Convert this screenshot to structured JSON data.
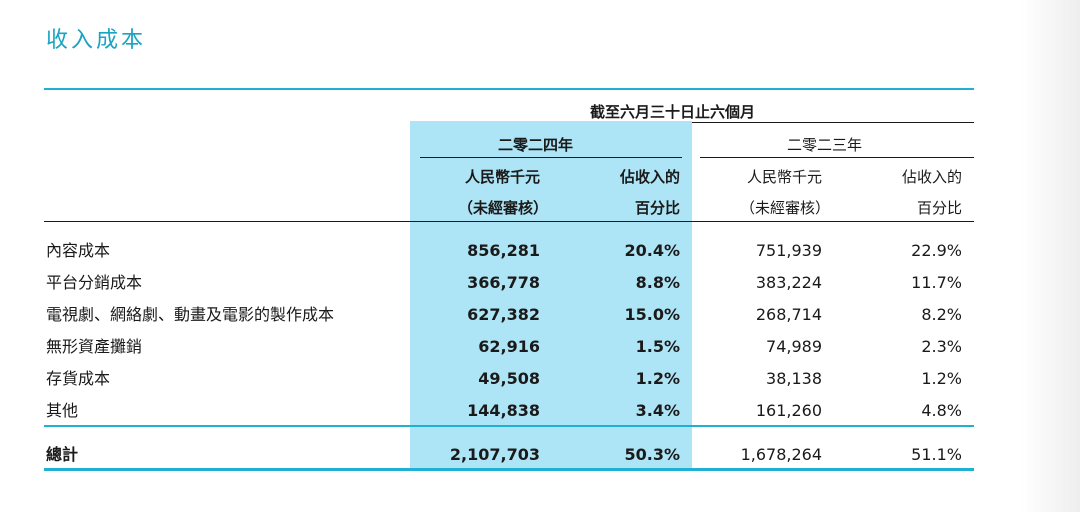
{
  "title": "收入成本",
  "header": {
    "period": "截至六月三十日止六個月",
    "year_2024": "二零二四年",
    "year_2023": "二零二三年",
    "unit_line1": "人民幣千元",
    "unit_line2": "（未經審核）",
    "pct_line1": "佔收入的",
    "pct_line2": "百分比"
  },
  "rows": [
    {
      "label": "內容成本",
      "v2024": "856,281",
      "p2024": "20.4%",
      "v2023": "751,939",
      "p2023": "22.9%"
    },
    {
      "label": "平台分銷成本",
      "v2024": "366,778",
      "p2024": "8.8%",
      "v2023": "383,224",
      "p2023": "11.7%"
    },
    {
      "label": "電視劇、網絡劇、動畫及電影的製作成本",
      "v2024": "627,382",
      "p2024": "15.0%",
      "v2023": "268,714",
      "p2023": "8.2%"
    },
    {
      "label": "無形資產攤銷",
      "v2024": "62,916",
      "p2024": "1.5%",
      "v2023": "74,989",
      "p2023": "2.3%"
    },
    {
      "label": "存貨成本",
      "v2024": "49,508",
      "p2024": "1.2%",
      "v2023": "38,138",
      "p2023": "1.2%"
    },
    {
      "label": "其他",
      "v2024": "144,838",
      "p2024": "3.4%",
      "v2023": "161,260",
      "p2023": "4.8%"
    }
  ],
  "total": {
    "label": "總計",
    "v2024": "2,107,703",
    "p2024": "50.3%",
    "v2023": "1,678,264",
    "p2023": "51.1%"
  },
  "colors": {
    "accent": "#1fb0d4",
    "highlight": "#aee5f6",
    "title": "#1aa3c3"
  }
}
